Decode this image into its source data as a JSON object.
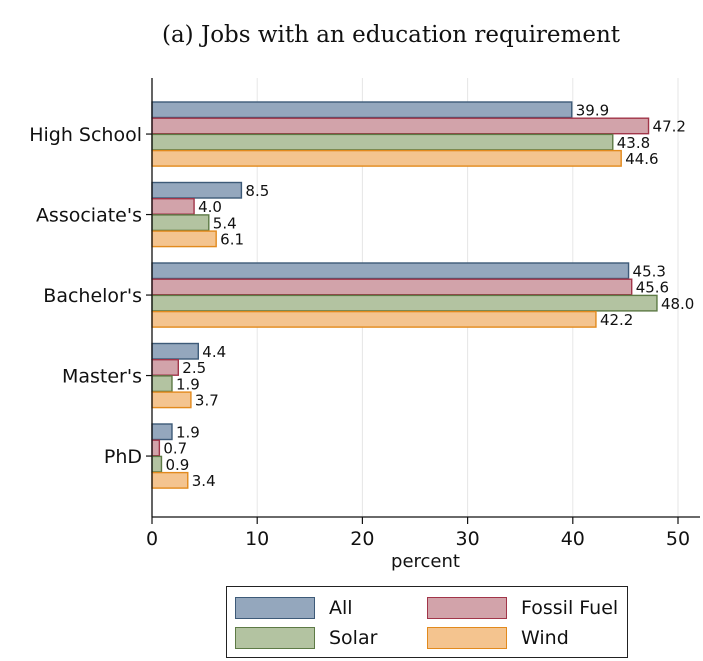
{
  "chart_data": {
    "type": "bar",
    "orientation": "horizontal",
    "title": "(a) Jobs with an education requirement",
    "xlabel": "percent",
    "ylabel": "",
    "xlim": [
      0,
      52
    ],
    "xticks": [
      0,
      10,
      20,
      30,
      40,
      50
    ],
    "grid": true,
    "legend_position": "bottom",
    "categories": [
      "High School",
      "Associate's",
      "Bachelor's",
      "Master's",
      "PhD"
    ],
    "series": [
      {
        "name": "All",
        "values": [
          39.9,
          8.5,
          45.3,
          4.4,
          1.9
        ],
        "fill": "#94a7bd",
        "stroke": "#3d5a78"
      },
      {
        "name": "Fossil Fuel",
        "values": [
          47.2,
          4.0,
          45.6,
          2.5,
          0.7
        ],
        "fill": "#d2a3aa",
        "stroke": "#a13549"
      },
      {
        "name": "Solar",
        "values": [
          43.8,
          5.4,
          48.0,
          1.9,
          0.9
        ],
        "fill": "#b3c3a1",
        "stroke": "#5d7a45"
      },
      {
        "name": "Wind",
        "values": [
          44.6,
          6.1,
          42.2,
          3.7,
          3.4
        ],
        "fill": "#f4c48f",
        "stroke": "#e28a1d"
      }
    ]
  }
}
